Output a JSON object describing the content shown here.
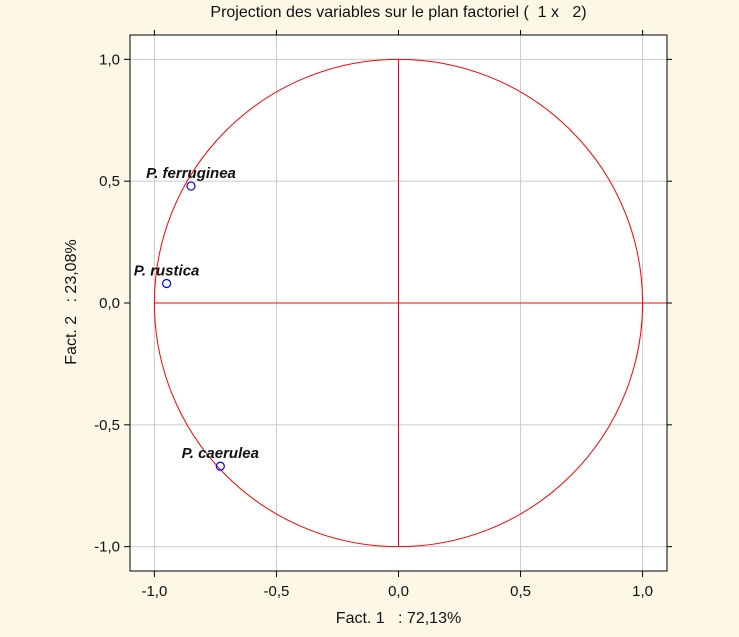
{
  "chart_data": {
    "type": "scatter",
    "title": "Projection des variables sur le plan factoriel (  1 x   2)",
    "xlabel": "Fact. 1   : 72,13%",
    "ylabel": "Fact. 2   : 23,08%",
    "xlim": [
      -1.1,
      1.1
    ],
    "ylim": [
      -1.1,
      1.1
    ],
    "xticks": [
      -1.0,
      -0.5,
      0.0,
      0.5,
      1.0
    ],
    "yticks": [
      -1.0,
      -0.5,
      0.0,
      0.5,
      1.0
    ],
    "xtick_labels": [
      "-1,0",
      "-0,5",
      "0,0",
      "0,5",
      "1,0"
    ],
    "ytick_labels": [
      "-1,0",
      "-0,5",
      "0,0",
      "0,5",
      "1,0"
    ],
    "grid": true,
    "unit_circle": true,
    "points": [
      {
        "label": "P. ferruginea",
        "x": -0.85,
        "y": 0.48
      },
      {
        "label": "P. rustica",
        "x": -0.95,
        "y": 0.08
      },
      {
        "label": "P. caerulea",
        "x": -0.73,
        "y": -0.67
      }
    ],
    "colors": {
      "circle": "#ff0000",
      "axes": "#ff0000",
      "marker": "#0000ff",
      "grid": "#cccccc",
      "background": "#fdf8e6"
    }
  }
}
